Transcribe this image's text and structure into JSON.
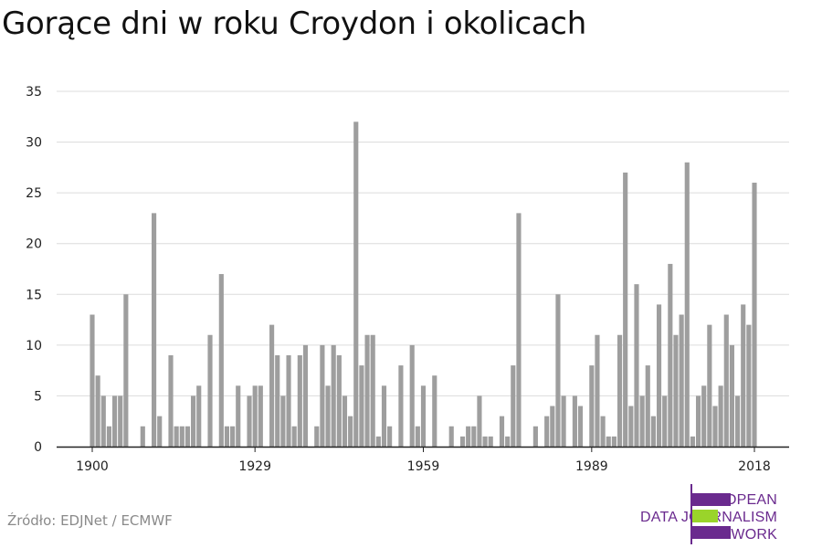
{
  "title": "Gorące dni w roku Croydon i okolicach",
  "source": "Źródło: EDJNet / ECMWF",
  "logo": {
    "lines": [
      "EUROPEAN",
      "DATA JOURNALISM",
      "NETWORK"
    ],
    "text_color": "#6a2a8e",
    "bar_colors": [
      "#6a2a8e",
      "#9ad42a",
      "#6a2a8e"
    ]
  },
  "colors": {
    "bar": "#9e9e9e",
    "grid": "#dcdcdc",
    "axis": "#222222"
  },
  "chart_data": {
    "type": "bar",
    "title": "Gorące dni w roku Croydon i okolicach",
    "xlabel": "",
    "ylabel": "",
    "x_range": [
      1893,
      2022
    ],
    "ylim": [
      0,
      35
    ],
    "y_ticks": [
      0,
      5,
      10,
      15,
      20,
      25,
      30,
      35
    ],
    "x_ticks": [
      1900,
      1929,
      1959,
      1989,
      2018
    ],
    "grid": true,
    "x": [
      1900,
      1901,
      1902,
      1903,
      1904,
      1905,
      1906,
      1907,
      1908,
      1909,
      1910,
      1911,
      1912,
      1913,
      1914,
      1915,
      1916,
      1917,
      1918,
      1919,
      1920,
      1921,
      1922,
      1923,
      1924,
      1925,
      1926,
      1927,
      1928,
      1929,
      1930,
      1931,
      1932,
      1933,
      1934,
      1935,
      1936,
      1937,
      1938,
      1939,
      1940,
      1941,
      1942,
      1943,
      1944,
      1945,
      1946,
      1947,
      1948,
      1949,
      1950,
      1951,
      1952,
      1953,
      1954,
      1955,
      1956,
      1957,
      1958,
      1959,
      1960,
      1961,
      1962,
      1963,
      1964,
      1965,
      1966,
      1967,
      1968,
      1969,
      1970,
      1971,
      1972,
      1973,
      1974,
      1975,
      1976,
      1977,
      1978,
      1979,
      1980,
      1981,
      1982,
      1983,
      1984,
      1985,
      1986,
      1987,
      1988,
      1989,
      1990,
      1991,
      1992,
      1993,
      1994,
      1995,
      1996,
      1997,
      1998,
      1999,
      2000,
      2001,
      2002,
      2003,
      2004,
      2005,
      2006,
      2007,
      2008,
      2009,
      2010,
      2011,
      2012,
      2013,
      2014,
      2015,
      2016,
      2017,
      2018
    ],
    "values": [
      13,
      7,
      5,
      2,
      5,
      5,
      15,
      0,
      0,
      2,
      0,
      23,
      3,
      0,
      9,
      2,
      2,
      2,
      5,
      6,
      0,
      11,
      0,
      17,
      2,
      2,
      6,
      0,
      5,
      6,
      6,
      0,
      12,
      9,
      5,
      9,
      2,
      9,
      10,
      0,
      2,
      10,
      6,
      10,
      9,
      5,
      3,
      32,
      8,
      11,
      11,
      1,
      6,
      2,
      0,
      8,
      0,
      10,
      2,
      6,
      0,
      7,
      0,
      0,
      2,
      0,
      1,
      2,
      2,
      5,
      1,
      1,
      0,
      3,
      1,
      8,
      23,
      0,
      0,
      2,
      0,
      3,
      4,
      15,
      5,
      0,
      5,
      4,
      0,
      8,
      11,
      3,
      1,
      1,
      11,
      27,
      4,
      16,
      5,
      8,
      3,
      14,
      5,
      18,
      11,
      13,
      28,
      1,
      5,
      6,
      12,
      4,
      6,
      13,
      10,
      5,
      14,
      12,
      26
    ]
  }
}
